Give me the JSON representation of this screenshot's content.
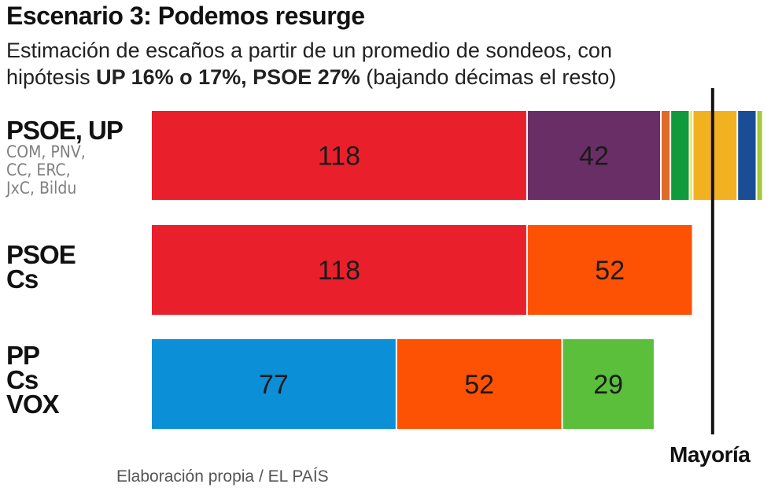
{
  "header": {
    "title": "Escenario 3: Podemos resurge",
    "subtitle_line1": "Estimación de escaños a partir de un promedio de sondeos, con",
    "subtitle_prefix": "hipótesis ",
    "subtitle_bold": "UP 16% o 17%, PSOE 27%",
    "subtitle_suffix": " (bajando décimas el resto)"
  },
  "groups": [
    {
      "main": [
        "PSOE, UP"
      ],
      "sub": [
        "COM, PNV,",
        "CC, ERC,",
        "JxC, Bildu"
      ]
    },
    {
      "main": [
        "PSOE",
        "Cs"
      ],
      "sub": []
    },
    {
      "main": [
        "PP",
        "Cs",
        "VOX"
      ],
      "sub": []
    }
  ],
  "majority_label": "Mayoría",
  "source": "Elaboración propia / EL PAÍS",
  "chart_data": {
    "type": "bar",
    "orientation": "horizontal-stacked",
    "title": "Escenario 3: Podemos resurge",
    "unit": "escaños",
    "xlim": [
      0,
      245
    ],
    "majority_line": 176,
    "majority_label": "Mayoría",
    "categories": [
      "PSOE, UP, COM, PNV, CC, ERC, JxC, Bildu",
      "PSOE, Cs",
      "PP, Cs, VOX"
    ],
    "series": [
      {
        "category": "PSOE, UP, COM, PNV, CC, ERC, JxC, Bildu",
        "segments": [
          {
            "party": "PSOE",
            "value": 118,
            "color": "#e9202b",
            "label": "118"
          },
          {
            "party": "UP",
            "value": 42,
            "color": "#6a2e66",
            "label": "42"
          },
          {
            "party": "COM",
            "value": 3,
            "color": "#e06b28",
            "label": ""
          },
          {
            "party": "PNV",
            "value": 6,
            "color": "#0f9a3c",
            "label": ""
          },
          {
            "party": "CC",
            "value": 1,
            "color": "#eee32a",
            "label": ""
          },
          {
            "party": "ERC",
            "value": 14,
            "color": "#f2b120",
            "label": ""
          },
          {
            "party": "JxC",
            "value": 6,
            "color": "#1a4d96",
            "label": ""
          },
          {
            "party": "Bildu",
            "value": 2,
            "color": "#a4c93a",
            "label": ""
          }
        ]
      },
      {
        "category": "PSOE, Cs",
        "segments": [
          {
            "party": "PSOE",
            "value": 118,
            "color": "#e9202b",
            "label": "118"
          },
          {
            "party": "Cs",
            "value": 52,
            "color": "#fd5103",
            "label": "52"
          }
        ]
      },
      {
        "category": "PP, Cs, VOX",
        "segments": [
          {
            "party": "PP",
            "value": 77,
            "color": "#0b8fd7",
            "label": "77"
          },
          {
            "party": "Cs",
            "value": 52,
            "color": "#fd5103",
            "label": "52"
          },
          {
            "party": "VOX",
            "value": 29,
            "color": "#5bbf3c",
            "label": "29"
          }
        ]
      }
    ]
  }
}
